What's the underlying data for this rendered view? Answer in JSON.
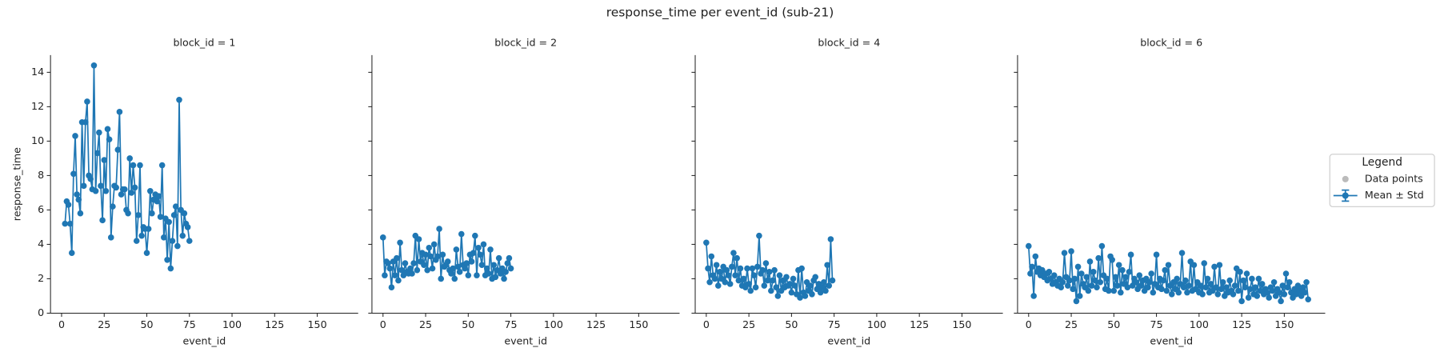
{
  "figure": {
    "title": "response_time per event_id (sub-21)",
    "legend": {
      "title": "Legend",
      "entries": [
        {
          "label": "Data points",
          "color": "#bbbbbb"
        }
      ]
    }
  },
  "chart_data": [
    {
      "type": "line",
      "title": "block_id = 1",
      "x_label": "event_id",
      "y_label": "response_time",
      "x": [
        2,
        3,
        4,
        5,
        6,
        7,
        8,
        9,
        10,
        11,
        12,
        13,
        14,
        15,
        16,
        17,
        18,
        19,
        20,
        21,
        22,
        23,
        24,
        25,
        26,
        27,
        28,
        29,
        30,
        31,
        32,
        33,
        34,
        35,
        36,
        37,
        38,
        39,
        40,
        41,
        42,
        43,
        44,
        45,
        46,
        47,
        48,
        49,
        50,
        51,
        52,
        53,
        54,
        55,
        56,
        57,
        58,
        59,
        60,
        61,
        62,
        63,
        64,
        65,
        66,
        67,
        68,
        69,
        70,
        71,
        72,
        73,
        74,
        75
      ],
      "series": [
        {
          "name": "Mean ± Std",
          "color": "#1f77b4",
          "values": [
            5.2,
            6.5,
            6.3,
            5.2,
            3.5,
            8.1,
            10.3,
            6.9,
            6.6,
            5.8,
            11.1,
            7.4,
            11.1,
            12.3,
            8.0,
            7.8,
            7.2,
            14.4,
            7.1,
            9.3,
            10.5,
            7.4,
            5.4,
            8.9,
            7.1,
            10.7,
            10.1,
            4.4,
            6.2,
            7.4,
            7.3,
            9.5,
            11.7,
            6.9,
            7.2,
            7.2,
            6.0,
            5.8,
            9.0,
            7.0,
            8.6,
            7.3,
            4.2,
            5.7,
            8.6,
            4.5,
            5.0,
            4.9,
            3.5,
            4.9,
            7.1,
            5.8,
            6.6,
            6.9,
            6.5,
            6.8,
            5.6,
            8.6,
            4.4,
            5.5,
            3.1,
            5.3,
            2.6,
            4.2,
            5.7,
            6.2,
            3.9,
            12.4,
            6.0,
            4.5,
            5.8,
            5.2,
            5.0,
            4.2
          ]
        }
      ],
      "xlim": [
        -6.5,
        174
      ],
      "ylim": [
        0,
        15
      ],
      "xticks": [
        0,
        25,
        50,
        75,
        100,
        125,
        150
      ],
      "yticks": [
        0,
        2,
        4,
        6,
        8,
        10,
        12,
        14
      ]
    },
    {
      "type": "line",
      "title": "block_id = 2",
      "x_label": "event_id",
      "x": [
        0,
        1,
        2,
        3,
        4,
        5,
        6,
        7,
        8,
        9,
        10,
        11,
        12,
        13,
        14,
        15,
        16,
        17,
        18,
        19,
        20,
        21,
        22,
        23,
        24,
        25,
        26,
        27,
        28,
        29,
        30,
        31,
        32,
        33,
        34,
        35,
        36,
        37,
        38,
        39,
        40,
        41,
        42,
        43,
        44,
        45,
        46,
        47,
        48,
        49,
        50,
        51,
        52,
        53,
        54,
        55,
        56,
        57,
        58,
        59,
        60,
        61,
        62,
        63,
        64,
        65,
        66,
        67,
        68,
        69,
        70,
        71,
        72,
        73,
        74,
        75
      ],
      "series": [
        {
          "name": "Mean ± Std",
          "color": "#1f77b4",
          "values": [
            4.4,
            2.2,
            3.0,
            2.9,
            2.6,
            1.5,
            3.0,
            2.2,
            3.2,
            1.9,
            4.1,
            2.5,
            2.2,
            2.9,
            2.4,
            2.3,
            2.6,
            2.3,
            2.9,
            4.5,
            2.5,
            4.3,
            3.0,
            3.5,
            2.8,
            3.4,
            2.5,
            3.8,
            3.3,
            2.6,
            4.0,
            3.1,
            3.3,
            4.9,
            2.0,
            3.4,
            2.7,
            2.8,
            3.0,
            2.5,
            2.3,
            2.6,
            2.0,
            3.7,
            2.7,
            2.4,
            4.6,
            2.8,
            2.6,
            2.9,
            2.2,
            3.4,
            3.0,
            3.5,
            4.5,
            2.2,
            3.8,
            3.4,
            2.8,
            4.0,
            2.2,
            2.6,
            2.3,
            3.7,
            2.0,
            2.8,
            2.1,
            2.5,
            3.2,
            2.3,
            2.6,
            2.0,
            2.4,
            2.9,
            3.2,
            2.6
          ]
        }
      ],
      "xlim": [
        -6.5,
        174
      ],
      "ylim": [
        0,
        15
      ],
      "xticks": [
        0,
        25,
        50,
        75,
        100,
        125,
        150
      ],
      "yticks": [
        0,
        2,
        4,
        6,
        8,
        10,
        12,
        14
      ]
    },
    {
      "type": "line",
      "title": "block_id = 4",
      "x_label": "event_id",
      "x": [
        0,
        1,
        2,
        3,
        4,
        5,
        6,
        7,
        8,
        9,
        10,
        11,
        12,
        13,
        14,
        15,
        16,
        17,
        18,
        19,
        20,
        21,
        22,
        23,
        24,
        25,
        26,
        27,
        28,
        29,
        30,
        31,
        32,
        33,
        34,
        35,
        36,
        37,
        38,
        39,
        40,
        41,
        42,
        43,
        44,
        45,
        46,
        47,
        48,
        49,
        50,
        51,
        52,
        53,
        54,
        55,
        56,
        57,
        58,
        59,
        60,
        61,
        62,
        63,
        64,
        65,
        66,
        67,
        68,
        69,
        70,
        71,
        72,
        73,
        74
      ],
      "series": [
        {
          "name": "Mean ± Std",
          "color": "#1f77b4",
          "values": [
            4.1,
            2.6,
            1.8,
            3.3,
            2.2,
            2.0,
            2.8,
            1.6,
            2.4,
            2.0,
            2.7,
            1.8,
            2.5,
            2.2,
            1.7,
            2.7,
            3.5,
            2.2,
            3.2,
            1.9,
            2.6,
            1.6,
            2.0,
            1.5,
            2.6,
            1.7,
            1.3,
            2.6,
            2.2,
            1.5,
            2.7,
            4.5,
            2.3,
            2.5,
            1.6,
            2.9,
            1.9,
            2.4,
            1.3,
            1.9,
            2.5,
            1.5,
            1.0,
            2.2,
            1.3,
            1.9,
            1.5,
            2.1,
            1.6,
            1.7,
            1.2,
            2.0,
            1.6,
            1.1,
            2.5,
            0.9,
            2.6,
            1.2,
            1.0,
            1.8,
            1.3,
            1.6,
            1.1,
            1.9,
            2.1,
            1.4,
            1.7,
            1.2,
            1.5,
            1.8,
            1.3,
            2.8,
            1.6,
            4.3,
            1.9
          ]
        }
      ],
      "xlim": [
        -6.5,
        174
      ],
      "ylim": [
        0,
        15
      ],
      "xticks": [
        0,
        25,
        50,
        75,
        100,
        125,
        150
      ],
      "yticks": [
        0,
        2,
        4,
        6,
        8,
        10,
        12,
        14
      ]
    },
    {
      "type": "line",
      "title": "block_id = 6",
      "x_label": "event_id",
      "x": [
        0,
        1,
        2,
        3,
        4,
        5,
        6,
        7,
        8,
        9,
        10,
        11,
        12,
        13,
        14,
        15,
        16,
        17,
        18,
        19,
        20,
        21,
        22,
        23,
        24,
        25,
        26,
        27,
        28,
        29,
        30,
        31,
        32,
        33,
        34,
        35,
        36,
        37,
        38,
        39,
        40,
        41,
        42,
        43,
        44,
        45,
        46,
        47,
        48,
        49,
        50,
        51,
        52,
        53,
        54,
        55,
        56,
        57,
        58,
        59,
        60,
        61,
        62,
        63,
        64,
        65,
        66,
        67,
        68,
        69,
        70,
        71,
        72,
        73,
        74,
        75,
        76,
        77,
        78,
        79,
        80,
        81,
        82,
        83,
        84,
        85,
        86,
        87,
        88,
        89,
        90,
        91,
        92,
        93,
        94,
        95,
        96,
        97,
        98,
        99,
        100,
        101,
        102,
        103,
        104,
        105,
        106,
        107,
        108,
        109,
        110,
        111,
        112,
        113,
        114,
        115,
        116,
        117,
        118,
        119,
        120,
        121,
        122,
        123,
        124,
        125,
        126,
        127,
        128,
        129,
        130,
        131,
        132,
        133,
        134,
        135,
        136,
        137,
        138,
        139,
        140,
        141,
        142,
        143,
        144,
        145,
        146,
        147,
        148,
        149,
        150,
        151,
        152,
        153,
        154,
        155,
        156,
        157,
        158,
        159,
        160,
        161,
        162,
        163,
        164
      ],
      "series": [
        {
          "name": "Mean ± Std",
          "color": "#1f77b4",
          "values": [
            3.9,
            2.3,
            2.7,
            1.0,
            3.3,
            2.4,
            2.6,
            2.2,
            2.5,
            2.1,
            2.3,
            1.9,
            2.4,
            2.0,
            1.7,
            2.2,
            1.8,
            1.6,
            2.0,
            1.5,
            1.8,
            3.5,
            2.1,
            1.6,
            1.9,
            3.6,
            1.4,
            2.0,
            0.7,
            2.7,
            1.0,
            2.3,
            1.7,
            1.5,
            2.1,
            1.3,
            3.0,
            1.6,
            2.4,
            1.9,
            1.5,
            3.2,
            1.8,
            3.9,
            2.2,
            1.4,
            2.0,
            1.3,
            3.3,
            3.1,
            1.3,
            2.1,
            1.6,
            2.8,
            1.2,
            2.5,
            1.7,
            2.1,
            1.5,
            2.4,
            3.4,
            1.6,
            2.0,
            1.8,
            1.4,
            2.2,
            1.6,
            1.9,
            1.3,
            2.0,
            1.5,
            1.8,
            2.3,
            1.2,
            1.7,
            3.4,
            1.5,
            2.0,
            1.4,
            1.9,
            2.5,
            1.3,
            2.8,
            1.6,
            1.1,
            1.8,
            1.4,
            2.0,
            1.2,
            1.7,
            3.5,
            1.5,
            1.9,
            1.2,
            1.6,
            3.0,
            1.3,
            2.8,
            1.4,
            1.8,
            1.2,
            1.6,
            1.1,
            2.9,
            1.5,
            2.0,
            1.2,
            1.7,
            1.3,
            2.7,
            1.5,
            1.1,
            2.8,
            1.4,
            1.8,
            1.0,
            1.5,
            1.2,
            1.9,
            1.3,
            1.1,
            1.6,
            2.6,
            1.3,
            2.4,
            0.7,
            1.9,
            1.5,
            2.3,
            0.9,
            1.4,
            2.0,
            1.1,
            1.5,
            1.0,
            2.0,
            1.3,
            1.7,
            1.1,
            1.4,
            1.2,
            0.9,
            1.5,
            1.3,
            1.8,
            1.0,
            1.4,
            1.2,
            0.7,
            1.6,
            1.1,
            2.3,
            1.5,
            1.8,
            1.2,
            0.9,
            1.4,
            1.1,
            1.6,
            1.3,
            1.0,
            1.5,
            1.2,
            1.8,
            0.8
          ]
        }
      ],
      "xlim": [
        -6.5,
        174
      ],
      "ylim": [
        0,
        15
      ],
      "xticks": [
        0,
        25,
        50,
        75,
        100,
        125,
        150
      ],
      "yticks": [
        0,
        2,
        4,
        6,
        8,
        10,
        12,
        14
      ]
    }
  ]
}
